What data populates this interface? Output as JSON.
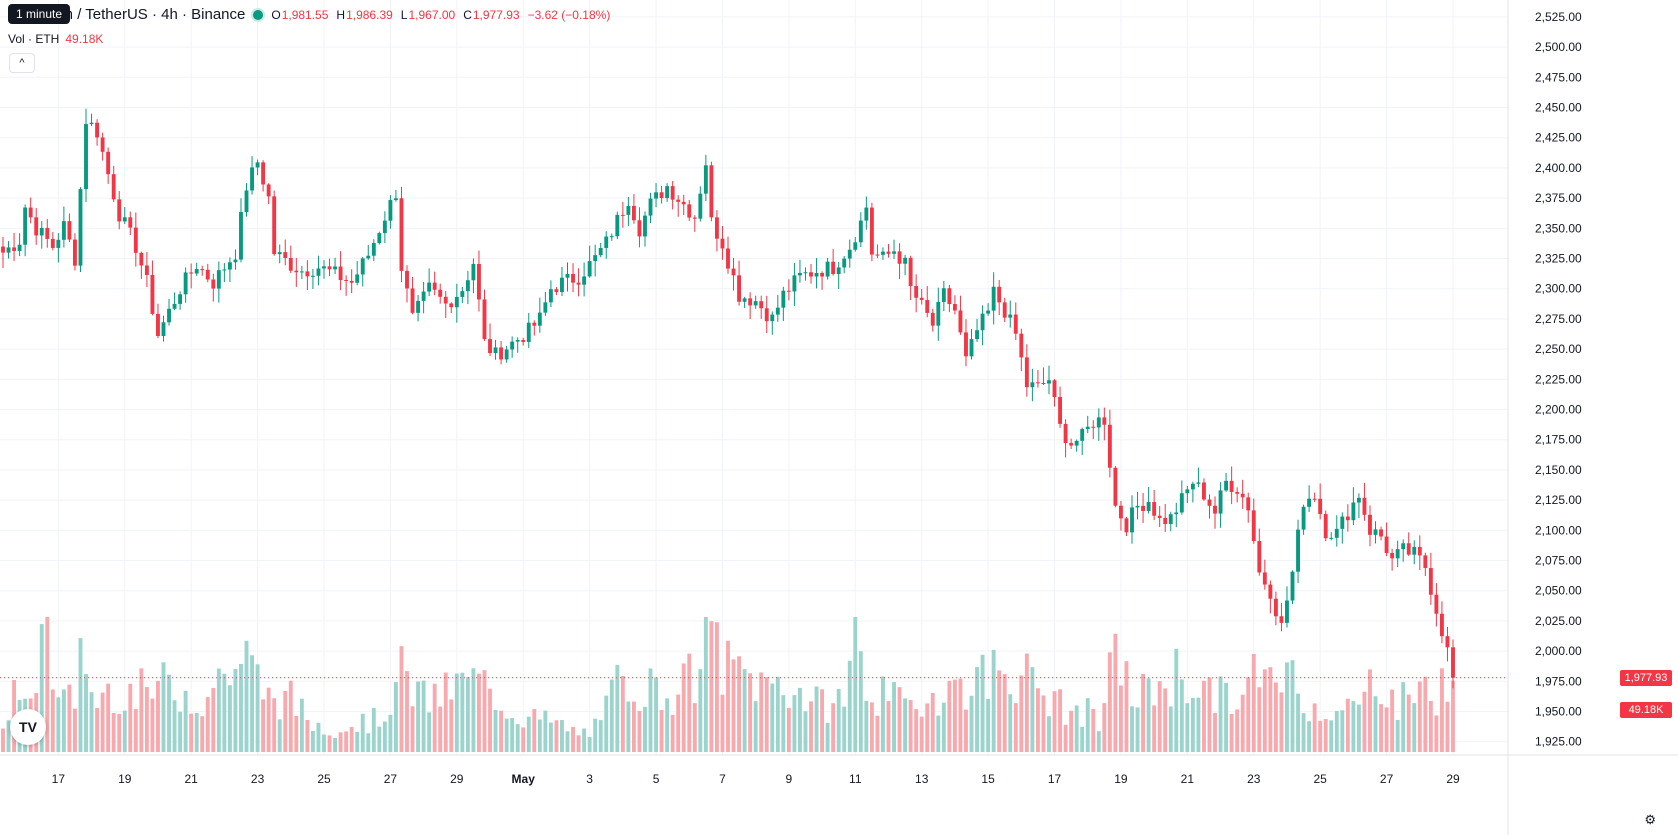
{
  "header": {
    "symbol_title": "Ethereum / TetherUS · 4h · Binance",
    "tooltip": "1 minute",
    "open_key": "O",
    "open": "1,981.55",
    "high_key": "H",
    "high": "1,986.39",
    "low_key": "L",
    "low": "1,967.00",
    "close_key": "C",
    "close": "1,977.93",
    "change": "−3.62 (−0.18%)",
    "volume_label": "Vol · ETH",
    "volume_value": "49.18K",
    "collapse_icon": "^",
    "logo_text": "TV"
  },
  "labels": {
    "last_price": "1,977.93",
    "last_volume": "49.18K",
    "settings_icon": "⚙"
  },
  "colors": {
    "up": "#089981",
    "down": "#f23645",
    "up_vol": "#9ad4cc",
    "down_vol": "#f7a9ae",
    "grid": "#f0f3fa"
  },
  "chart_data": {
    "type": "candlestick",
    "interval": "4h",
    "price_ticks": [
      1925,
      1950,
      1975,
      2000,
      2025,
      2050,
      2075,
      2100,
      2125,
      2150,
      2175,
      2200,
      2225,
      2250,
      2275,
      2300,
      2325,
      2350,
      2375,
      2400,
      2425,
      2450,
      2475,
      2500,
      2525
    ],
    "price_tick_labels": [
      "1,925.00",
      "1,950.00",
      "1,975.00",
      "2,000.00",
      "2,025.00",
      "2,050.00",
      "2,075.00",
      "2,100.00",
      "2,125.00",
      "2,150.00",
      "2,175.00",
      "2,200.00",
      "2,225.00",
      "2,250.00",
      "2,275.00",
      "2,300.00",
      "2,325.00",
      "2,350.00",
      "2,375.00",
      "2,400.00",
      "2,425.00",
      "2,450.00",
      "2,475.00",
      "2,500.00",
      "2,525.00"
    ],
    "ylim": [
      1914,
      2539
    ],
    "x_tick_labels": [
      "17",
      "19",
      "21",
      "23",
      "25",
      "27",
      "29",
      "May",
      "3",
      "5",
      "7",
      "9",
      "11",
      "13",
      "15",
      "17",
      "19",
      "21",
      "23",
      "25",
      "27",
      "29"
    ],
    "x_tick_index": [
      10,
      22,
      34,
      46,
      58,
      70,
      82,
      94,
      106,
      118,
      130,
      142,
      154,
      166,
      178,
      190,
      202,
      214,
      226,
      238,
      250,
      262
    ],
    "anchors": [
      [
        0,
        2330
      ],
      [
        3,
        2340
      ],
      [
        4,
        2368
      ],
      [
        6,
        2350
      ],
      [
        9,
        2335
      ],
      [
        11,
        2352
      ],
      [
        13,
        2325
      ],
      [
        15,
        2440
      ],
      [
        17,
        2430
      ],
      [
        19,
        2395
      ],
      [
        21,
        2362
      ],
      [
        24,
        2335
      ],
      [
        26,
        2305
      ],
      [
        28,
        2262
      ],
      [
        32,
        2300
      ],
      [
        35,
        2320
      ],
      [
        38,
        2305
      ],
      [
        40,
        2318
      ],
      [
        42,
        2330
      ],
      [
        44,
        2385
      ],
      [
        46,
        2405
      ],
      [
        48,
        2375
      ],
      [
        49,
        2330
      ],
      [
        52,
        2320
      ],
      [
        54,
        2315
      ],
      [
        57,
        2318
      ],
      [
        60,
        2312
      ],
      [
        63,
        2305
      ],
      [
        66,
        2328
      ],
      [
        69,
        2360
      ],
      [
        71,
        2380
      ],
      [
        72,
        2318
      ],
      [
        74,
        2275
      ],
      [
        77,
        2300
      ],
      [
        80,
        2287
      ],
      [
        83,
        2300
      ],
      [
        85,
        2322
      ],
      [
        87,
        2255
      ],
      [
        89,
        2245
      ],
      [
        92,
        2255
      ],
      [
        95,
        2265
      ],
      [
        97,
        2275
      ],
      [
        99,
        2300
      ],
      [
        101,
        2305
      ],
      [
        104,
        2310
      ],
      [
        107,
        2325
      ],
      [
        109,
        2338
      ],
      [
        113,
        2375
      ],
      [
        115,
        2350
      ],
      [
        117,
        2370
      ],
      [
        120,
        2385
      ],
      [
        123,
        2370
      ],
      [
        125,
        2360
      ],
      [
        127,
        2405
      ],
      [
        128,
        2355
      ],
      [
        130,
        2338
      ],
      [
        133,
        2295
      ],
      [
        136,
        2290
      ],
      [
        139,
        2275
      ],
      [
        141,
        2295
      ],
      [
        144,
        2310
      ],
      [
        147,
        2315
      ],
      [
        150,
        2318
      ],
      [
        153,
        2335
      ],
      [
        155,
        2355
      ],
      [
        156,
        2368
      ],
      [
        157,
        2330
      ],
      [
        159,
        2325
      ],
      [
        161,
        2332
      ],
      [
        163,
        2320
      ],
      [
        164,
        2300
      ],
      [
        166,
        2285
      ],
      [
        168,
        2270
      ],
      [
        170,
        2295
      ],
      [
        172,
        2282
      ],
      [
        174,
        2240
      ],
      [
        176,
        2265
      ],
      [
        178,
        2280
      ],
      [
        179,
        2297
      ],
      [
        181,
        2282
      ],
      [
        183,
        2262
      ],
      [
        185,
        2220
      ],
      [
        187,
        2218
      ],
      [
        189,
        2225
      ],
      [
        191,
        2185
      ],
      [
        193,
        2172
      ],
      [
        195,
        2177
      ],
      [
        197,
        2190
      ],
      [
        199,
        2192
      ],
      [
        201,
        2120
      ],
      [
        203,
        2105
      ],
      [
        205,
        2120
      ],
      [
        207,
        2125
      ],
      [
        209,
        2108
      ],
      [
        211,
        2110
      ],
      [
        213,
        2125
      ],
      [
        215,
        2140
      ],
      [
        217,
        2130
      ],
      [
        219,
        2115
      ],
      [
        221,
        2140
      ],
      [
        223,
        2135
      ],
      [
        225,
        2120
      ],
      [
        227,
        2065
      ],
      [
        229,
        2050
      ],
      [
        231,
        2020
      ],
      [
        233,
        2065
      ],
      [
        235,
        2125
      ],
      [
        237,
        2130
      ],
      [
        239,
        2100
      ],
      [
        241,
        2098
      ],
      [
        243,
        2115
      ],
      [
        245,
        2130
      ],
      [
        247,
        2100
      ],
      [
        249,
        2095
      ],
      [
        251,
        2075
      ],
      [
        253,
        2083
      ],
      [
        255,
        2080
      ],
      [
        257,
        2070
      ],
      [
        259,
        2035
      ],
      [
        261,
        2000
      ],
      [
        262,
        1978
      ]
    ],
    "vol_anchors": [
      [
        0,
        22
      ],
      [
        2,
        45
      ],
      [
        4,
        30
      ],
      [
        8,
        100
      ],
      [
        10,
        35
      ],
      [
        13,
        42
      ],
      [
        14,
        100
      ],
      [
        15,
        55
      ],
      [
        17,
        40
      ],
      [
        20,
        50
      ],
      [
        24,
        45
      ],
      [
        30,
        52
      ],
      [
        36,
        40
      ],
      [
        40,
        62
      ],
      [
        44,
        70
      ],
      [
        48,
        42
      ],
      [
        52,
        40
      ],
      [
        56,
        22
      ],
      [
        60,
        18
      ],
      [
        64,
        22
      ],
      [
        68,
        25
      ],
      [
        72,
        60
      ],
      [
        76,
        40
      ],
      [
        80,
        45
      ],
      [
        84,
        55
      ],
      [
        88,
        50
      ],
      [
        92,
        30
      ],
      [
        96,
        26
      ],
      [
        100,
        22
      ],
      [
        104,
        14
      ],
      [
        108,
        20
      ],
      [
        110,
        45
      ],
      [
        112,
        60
      ],
      [
        116,
        50
      ],
      [
        120,
        45
      ],
      [
        124,
        55
      ],
      [
        126,
        60
      ],
      [
        128,
        100
      ],
      [
        130,
        65
      ],
      [
        134,
        60
      ],
      [
        138,
        50
      ],
      [
        140,
        55
      ],
      [
        144,
        45
      ],
      [
        148,
        35
      ],
      [
        152,
        42
      ],
      [
        154,
        100
      ],
      [
        156,
        50
      ],
      [
        160,
        40
      ],
      [
        164,
        35
      ],
      [
        168,
        45
      ],
      [
        172,
        50
      ],
      [
        176,
        55
      ],
      [
        180,
        65
      ],
      [
        184,
        60
      ],
      [
        188,
        45
      ],
      [
        192,
        32
      ],
      [
        196,
        30
      ],
      [
        198,
        20
      ],
      [
        200,
        60
      ],
      [
        202,
        75
      ],
      [
        204,
        40
      ],
      [
        208,
        50
      ],
      [
        212,
        60
      ],
      [
        216,
        50
      ],
      [
        220,
        42
      ],
      [
        224,
        40
      ],
      [
        226,
        62
      ],
      [
        228,
        48
      ],
      [
        230,
        60
      ],
      [
        232,
        70
      ],
      [
        234,
        42
      ],
      [
        238,
        35
      ],
      [
        242,
        30
      ],
      [
        246,
        40
      ],
      [
        248,
        65
      ],
      [
        252,
        35
      ],
      [
        256,
        55
      ],
      [
        258,
        40
      ],
      [
        260,
        52
      ],
      [
        262,
        45
      ]
    ],
    "volume_max": 78,
    "last_price": 1977.93,
    "candle_count": 263
  }
}
